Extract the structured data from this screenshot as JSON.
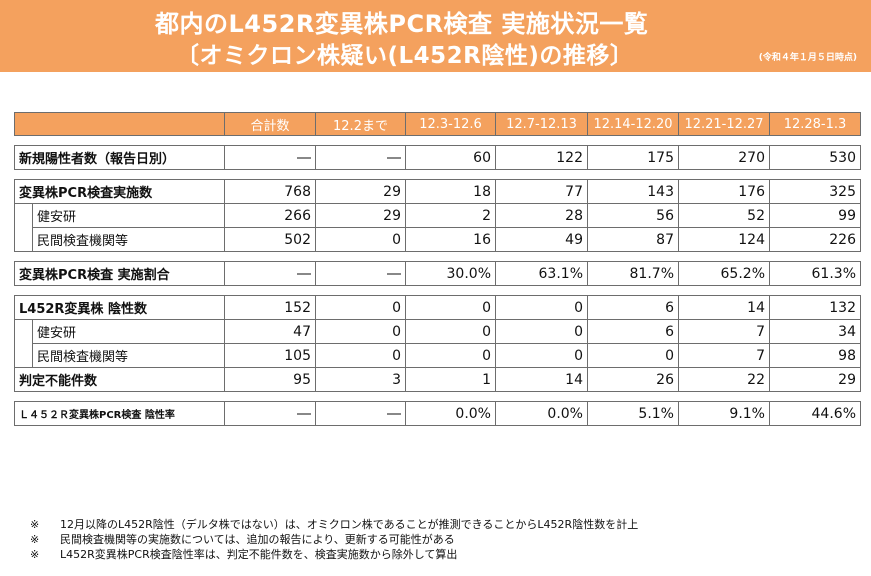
{
  "header": {
    "title_line1": "都内のL452R変異株PCR検査 実施状況一覧",
    "title_line2": "〔オミクロン株疑い(L452R陰性)の推移〕",
    "date_note": "(令和４年１月５日時点)"
  },
  "table": {
    "columns": [
      "合計数",
      "12.2まで",
      "12.3-12.6",
      "12.7-12.13",
      "12.14-12.20",
      "12.21-12.27",
      "12.28-1.3"
    ],
    "rows": {
      "new_positive": {
        "label": "新規陽性者数（報告日別）",
        "values": [
          "―",
          "―",
          "60",
          "122",
          "175",
          "270",
          "530"
        ]
      },
      "pcr_total": {
        "label": "変異株PCR検査実施数",
        "values": [
          "768",
          "29",
          "18",
          "77",
          "143",
          "176",
          "325"
        ]
      },
      "pcr_kenanken": {
        "label": "健安研",
        "values": [
          "266",
          "29",
          "2",
          "28",
          "56",
          "52",
          "99"
        ]
      },
      "pcr_private": {
        "label": "民間検査機関等",
        "values": [
          "502",
          "0",
          "16",
          "49",
          "87",
          "124",
          "226"
        ]
      },
      "pcr_rate": {
        "label": "変異株PCR検査 実施割合",
        "values": [
          "―",
          "―",
          "30.0%",
          "63.1%",
          "81.7%",
          "65.2%",
          "61.3%"
        ]
      },
      "negative_total": {
        "label": "L452R変異株 陰性数",
        "values": [
          "152",
          "0",
          "0",
          "0",
          "6",
          "14",
          "132"
        ]
      },
      "negative_kenanken": {
        "label": "健安研",
        "values": [
          "47",
          "0",
          "0",
          "0",
          "6",
          "7",
          "34"
        ]
      },
      "negative_private": {
        "label": "民間検査機関等",
        "values": [
          "105",
          "0",
          "0",
          "0",
          "0",
          "7",
          "98"
        ]
      },
      "undetermined": {
        "label": "判定不能件数",
        "values": [
          "95",
          "3",
          "1",
          "14",
          "26",
          "22",
          "29"
        ]
      },
      "negative_rate": {
        "label": "Ｌ４５２Ｒ変異株PCR検査 陰性率",
        "values": [
          "―",
          "―",
          "0.0%",
          "0.0%",
          "5.1%",
          "9.1%",
          "44.6%"
        ]
      }
    }
  },
  "notes": [
    {
      "mark": "※",
      "text": "12月以降のL452R陰性（デルタ株ではない）は、オミクロン株であることが推測できることからL452R陰性数を計上"
    },
    {
      "mark": "※",
      "text": "民間検査機関等の実施数については、追加の報告により、更新する可能性がある"
    },
    {
      "mark": "※",
      "text": "L452R変異株PCR検査陰性率は、判定不能件数を、検査実施数から除外して算出"
    }
  ],
  "colors": {
    "header_bg": "#f4a15e",
    "border": "#6d6d6d"
  }
}
